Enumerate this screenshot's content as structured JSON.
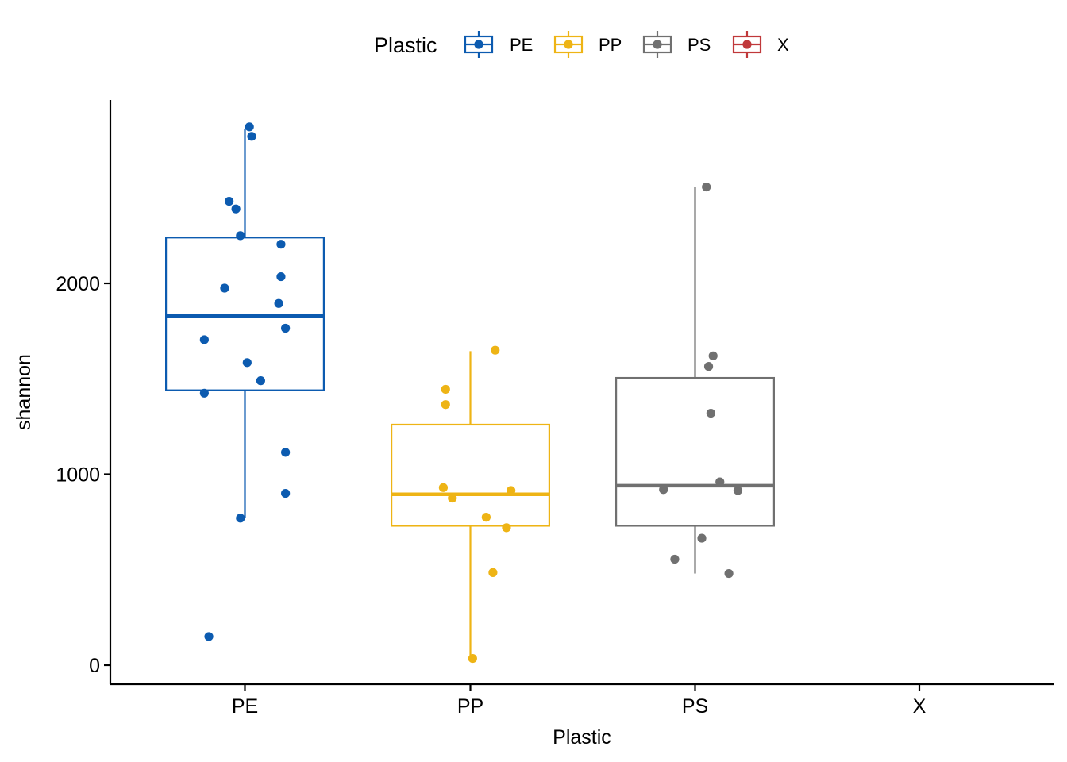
{
  "chart_data": {
    "type": "box",
    "xlabel": "Plastic",
    "ylabel": "shannon",
    "categories": [
      "PE",
      "PP",
      "PS",
      "X"
    ],
    "y_ticks": [
      0,
      1000,
      2000
    ],
    "ylim": [
      -100,
      2900
    ],
    "legend": {
      "title": "Plastic",
      "position": "top",
      "items": [
        {
          "label": "PE",
          "color": "#0C5BB0"
        },
        {
          "label": "PP",
          "color": "#EEB415"
        },
        {
          "label": "PS",
          "color": "#707070"
        },
        {
          "label": "X",
          "color": "#C0383A"
        }
      ]
    },
    "boxes": [
      {
        "category": "PE",
        "color": "#0C5BB0",
        "lower_whisker": 770,
        "q1": 1440,
        "median": 1830,
        "q3": 2240,
        "upper_whisker": 2810
      },
      {
        "category": "PP",
        "color": "#EEB415",
        "lower_whisker": 35,
        "q1": 730,
        "median": 895,
        "q3": 1260,
        "upper_whisker": 1645
      },
      {
        "category": "PS",
        "color": "#707070",
        "lower_whisker": 480,
        "q1": 730,
        "median": 940,
        "q3": 1505,
        "upper_whisker": 2505
      }
    ],
    "points": [
      {
        "category": "PE",
        "jitter": 0.02,
        "y": 2820
      },
      {
        "category": "PE",
        "jitter": 0.03,
        "y": 2770
      },
      {
        "category": "PE",
        "jitter": -0.07,
        "y": 2430
      },
      {
        "category": "PE",
        "jitter": -0.04,
        "y": 2390
      },
      {
        "category": "PE",
        "jitter": -0.02,
        "y": 2250
      },
      {
        "category": "PE",
        "jitter": 0.16,
        "y": 2205
      },
      {
        "category": "PE",
        "jitter": -0.09,
        "y": 1975
      },
      {
        "category": "PE",
        "jitter": 0.16,
        "y": 2035
      },
      {
        "category": "PE",
        "jitter": 0.15,
        "y": 1895
      },
      {
        "category": "PE",
        "jitter": 0.18,
        "y": 1765
      },
      {
        "category": "PE",
        "jitter": -0.18,
        "y": 1705
      },
      {
        "category": "PE",
        "jitter": 0.01,
        "y": 1585
      },
      {
        "category": "PE",
        "jitter": 0.07,
        "y": 1490
      },
      {
        "category": "PE",
        "jitter": -0.18,
        "y": 1425
      },
      {
        "category": "PE",
        "jitter": 0.18,
        "y": 1115
      },
      {
        "category": "PE",
        "jitter": 0.18,
        "y": 900
      },
      {
        "category": "PE",
        "jitter": -0.02,
        "y": 770
      },
      {
        "category": "PE",
        "jitter": -0.16,
        "y": 150
      },
      {
        "category": "PP",
        "jitter": 0.11,
        "y": 1650
      },
      {
        "category": "PP",
        "jitter": -0.11,
        "y": 1445
      },
      {
        "category": "PP",
        "jitter": -0.11,
        "y": 1365
      },
      {
        "category": "PP",
        "jitter": -0.12,
        "y": 930
      },
      {
        "category": "PP",
        "jitter": 0.18,
        "y": 915
      },
      {
        "category": "PP",
        "jitter": -0.08,
        "y": 875
      },
      {
        "category": "PP",
        "jitter": 0.07,
        "y": 775
      },
      {
        "category": "PP",
        "jitter": 0.16,
        "y": 720
      },
      {
        "category": "PP",
        "jitter": 0.1,
        "y": 485
      },
      {
        "category": "PP",
        "jitter": 0.01,
        "y": 35
      },
      {
        "category": "PS",
        "jitter": 0.05,
        "y": 2505
      },
      {
        "category": "PS",
        "jitter": 0.08,
        "y": 1620
      },
      {
        "category": "PS",
        "jitter": 0.06,
        "y": 1565
      },
      {
        "category": "PS",
        "jitter": 0.07,
        "y": 1320
      },
      {
        "category": "PS",
        "jitter": 0.11,
        "y": 960
      },
      {
        "category": "PS",
        "jitter": -0.14,
        "y": 920
      },
      {
        "category": "PS",
        "jitter": 0.19,
        "y": 915
      },
      {
        "category": "PS",
        "jitter": 0.03,
        "y": 665
      },
      {
        "category": "PS",
        "jitter": -0.09,
        "y": 555
      },
      {
        "category": "PS",
        "jitter": 0.15,
        "y": 480
      }
    ]
  }
}
